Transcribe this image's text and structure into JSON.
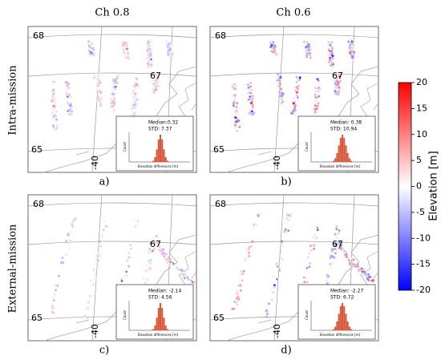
{
  "columns": [
    "Ch 0.8",
    "Ch 0.6"
  ],
  "rows": [
    "Intra-mission",
    "External-mission"
  ],
  "panels": [
    {
      "label": "a)",
      "median": "Median:0.32",
      "std": "STD: 7.37"
    },
    {
      "label": "b)",
      "median": "Median: 0.38",
      "std": "STD: 10.94"
    },
    {
      "label": "c)",
      "median": "Median: -2.14",
      "std": "STD: 4.56"
    },
    {
      "label": "d)",
      "median": "Median: -2.27",
      "std": "STD: 6.72"
    }
  ],
  "map_labels": {
    "lat_top": "68",
    "lat_mid": "67",
    "lat_bottom": "65",
    "lon": "-40"
  },
  "inset": {
    "x_label": "Elevation differences [m]",
    "y_label": "Count"
  },
  "colorbar": {
    "label": "Elevation [m]",
    "lim": [
      -20,
      20
    ],
    "ticks": [
      20,
      15,
      10,
      5,
      0,
      -5,
      -10,
      -15,
      -20
    ]
  }
}
